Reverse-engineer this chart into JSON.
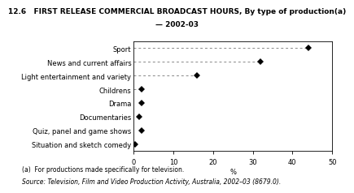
{
  "title_line1": "12.6   FIRST RELEASE COMMERCIAL BROADCAST HOURS, By type of production(a)",
  "title_line2": "— 2002-03",
  "categories": [
    "Sport",
    "News and current affairs",
    "Light entertainment and variety",
    "Childrens",
    "Drama",
    "Documentaries",
    "Quiz, panel and game shows",
    "Situation and sketch comedy"
  ],
  "values": [
    44.0,
    32.0,
    16.0,
    2.0,
    2.0,
    1.5,
    2.0,
    0.5
  ],
  "dashed_indices": [
    0,
    1,
    2,
    3
  ],
  "xlim": [
    0,
    50
  ],
  "xticks": [
    0,
    10,
    20,
    30,
    40,
    50
  ],
  "xlabel": "%",
  "footnote1": "(a)  For productions made specifically for television.",
  "footnote2": "Source: Television, Film and Video Production Activity, Australia, 2002–03 (8679.0).",
  "marker_color": "black",
  "marker_style": "D",
  "marker_size": 4,
  "dashed_line_color": "#888888",
  "background_color": "white",
  "title_fontsize": 6.5,
  "axis_fontsize": 6.0,
  "tick_fontsize": 6.0,
  "footnote_fontsize": 5.5
}
